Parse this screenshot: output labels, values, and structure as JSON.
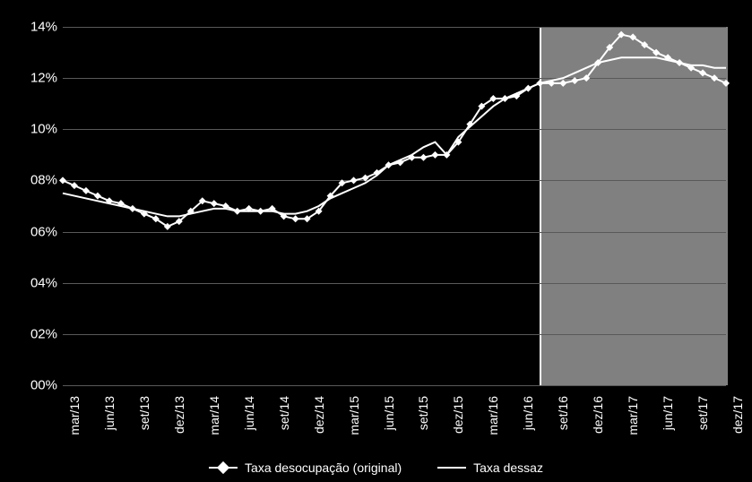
{
  "chart": {
    "type": "line",
    "background_color": "#000000",
    "grid_color": "#595959",
    "highlight": {
      "start_index": 41,
      "color": "#808080",
      "border_color": "#ffffff"
    },
    "y_axis": {
      "min": 0,
      "max": 14,
      "ticks": [
        0,
        2,
        4,
        6,
        8,
        10,
        12,
        14
      ],
      "labels": [
        "00%",
        "02%",
        "04%",
        "06%",
        "08%",
        "10%",
        "12%",
        "14%"
      ],
      "label_color": "#ffffff",
      "label_fontsize": 15
    },
    "x_axis": {
      "categories": [
        "mar/13",
        "abr/13",
        "mai/13",
        "jun/13",
        "jul/13",
        "ago/13",
        "set/13",
        "out/13",
        "nov/13",
        "dez/13",
        "jan/14",
        "fev/14",
        "mar/14",
        "abr/14",
        "mai/14",
        "jun/14",
        "jul/14",
        "ago/14",
        "set/14",
        "out/14",
        "nov/14",
        "dez/14",
        "jan/15",
        "fev/15",
        "mar/15",
        "abr/15",
        "mai/15",
        "jun/15",
        "jul/15",
        "ago/15",
        "set/15",
        "out/15",
        "nov/15",
        "dez/15",
        "jan/16",
        "fev/16",
        "mar/16",
        "abr/16",
        "mai/16",
        "jun/16",
        "jul/16",
        "ago/16",
        "set/16",
        "out/16",
        "nov/16",
        "dez/16",
        "jan/17",
        "fev/17",
        "mar/17",
        "abr/17",
        "mai/17",
        "jun/17",
        "jul/17",
        "ago/17",
        "set/17",
        "out/17",
        "nov/17",
        "dez/17"
      ],
      "visible_labels": [
        "mar/13",
        "jun/13",
        "set/13",
        "dez/13",
        "mar/14",
        "jun/14",
        "set/14",
        "dez/14",
        "mar/15",
        "jun/15",
        "set/15",
        "dez/15",
        "mar/16",
        "jun/16",
        "set/16",
        "dez/16",
        "mar/17",
        "jun/17",
        "set/17",
        "dez/17"
      ],
      "visible_indices": [
        0,
        3,
        6,
        9,
        12,
        15,
        18,
        21,
        24,
        27,
        30,
        33,
        36,
        39,
        42,
        45,
        48,
        51,
        54,
        57
      ],
      "label_color": "#ffffff",
      "label_fontsize": 14
    },
    "series": [
      {
        "name": "original",
        "legend_label": "Taxa desocupação (original)",
        "color": "#ffffff",
        "marker": "diamond",
        "marker_size": 8,
        "line_width": 2,
        "values": [
          8.0,
          7.8,
          7.6,
          7.4,
          7.2,
          7.1,
          6.9,
          6.7,
          6.5,
          6.2,
          6.4,
          6.8,
          7.2,
          7.1,
          7.0,
          6.8,
          6.9,
          6.8,
          6.9,
          6.6,
          6.5,
          6.5,
          6.8,
          7.4,
          7.9,
          8.0,
          8.1,
          8.3,
          8.6,
          8.7,
          8.9,
          8.9,
          9.0,
          9.0,
          9.5,
          10.2,
          10.9,
          11.2,
          11.2,
          11.3,
          11.6,
          11.8,
          11.8,
          11.8,
          11.9,
          12.0,
          12.6,
          13.2,
          13.7,
          13.6,
          13.3,
          13.0,
          12.8,
          12.6,
          12.4,
          12.2,
          12.0,
          11.8
        ]
      },
      {
        "name": "dessaz",
        "legend_label": "Taxa dessaz",
        "color": "#ffffff",
        "marker": null,
        "line_width": 2,
        "values": [
          7.5,
          7.4,
          7.3,
          7.2,
          7.1,
          7.0,
          6.9,
          6.8,
          6.7,
          6.6,
          6.6,
          6.7,
          6.8,
          6.9,
          6.9,
          6.8,
          6.8,
          6.8,
          6.8,
          6.7,
          6.7,
          6.8,
          7.0,
          7.3,
          7.5,
          7.7,
          7.9,
          8.2,
          8.6,
          8.8,
          9.0,
          9.3,
          9.5,
          9.0,
          9.7,
          10.1,
          10.5,
          10.9,
          11.2,
          11.4,
          11.6,
          11.8,
          11.9,
          12.0,
          12.2,
          12.4,
          12.6,
          12.7,
          12.8,
          12.8,
          12.8,
          12.8,
          12.7,
          12.6,
          12.5,
          12.5,
          12.4,
          12.4
        ]
      }
    ]
  }
}
